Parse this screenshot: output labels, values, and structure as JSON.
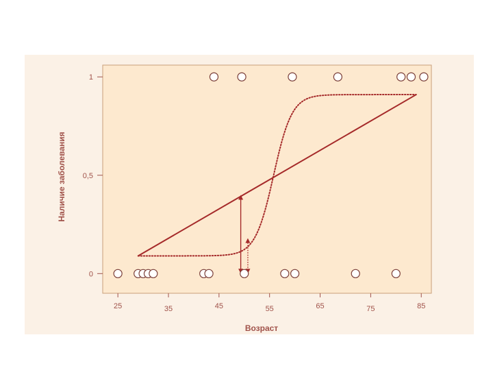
{
  "chart_data": {
    "type": "scatter",
    "xlabel": "Возраст",
    "ylabel": "Наличие заболевания",
    "xlim": [
      22,
      87
    ],
    "ylim": [
      -0.1,
      1.06
    ],
    "x_ticks": [
      25,
      35,
      45,
      55,
      65,
      75,
      85
    ],
    "x_tick_labels": [
      "25",
      "35",
      "45",
      "55",
      "65",
      "75",
      "85"
    ],
    "y_ticks": [
      0,
      0.5,
      1
    ],
    "y_tick_labels": [
      "0",
      "0,5",
      "1"
    ],
    "grid": false,
    "colors": {
      "line": "#a52a2a",
      "axis": "#a0524a",
      "point_fill": "#ffffff",
      "point_stroke": "#7a3e38",
      "panel": "#fde9cf",
      "panel_border": "#c9a07a"
    },
    "points_y0": [
      25,
      29,
      30,
      31,
      32,
      42,
      43,
      50,
      58,
      60,
      72,
      80
    ],
    "points_y1": [
      44,
      49.5,
      59.5,
      68.5,
      81,
      83,
      85.5
    ],
    "linear_fit": {
      "x": [
        29,
        84
      ],
      "y": [
        0.09,
        0.91
      ]
    },
    "logistic_fit": {
      "x_start": 29,
      "x_end": 84,
      "midpoint": 55.8,
      "steepness": 0.55,
      "lower": 0.09,
      "upper": 0.91
    },
    "residual_arrows": [
      {
        "x": 49.3,
        "y_from": 0.0,
        "y_to": 0.4,
        "style": "solid"
      },
      {
        "x": 50.7,
        "y_from": 0.0,
        "y_to": 0.18,
        "style": "dotted"
      }
    ]
  }
}
